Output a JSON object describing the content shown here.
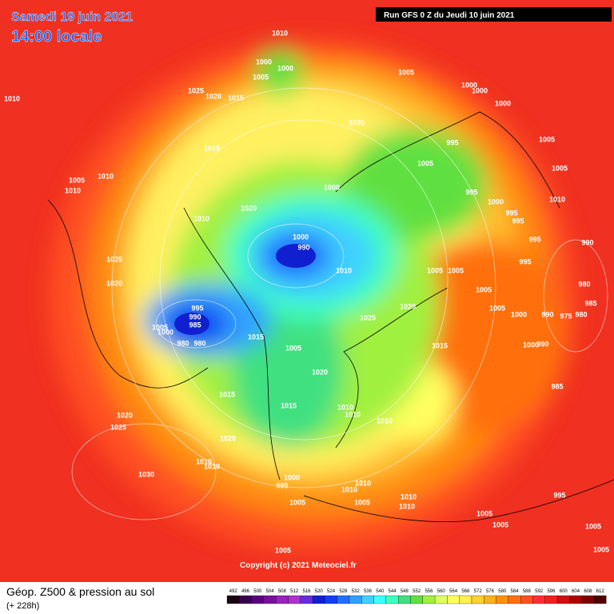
{
  "header": {
    "date": "Samedi 19 juin 2021",
    "time": "14:00 locale",
    "run": "Run GFS 0 Z du Jeudi 10 juin 2021"
  },
  "copyright": "Copyright (c) 2021 Meteociel.fr",
  "footer": {
    "title": "Géop. Z500 & pression au sol",
    "lead": "(+ 228h)"
  },
  "legend": {
    "levels": [
      492,
      496,
      500,
      504,
      508,
      512,
      516,
      520,
      524,
      528,
      532,
      536,
      540,
      544,
      548,
      552,
      556,
      560,
      564,
      568,
      572,
      576,
      580,
      584,
      588,
      592,
      596,
      600,
      604,
      608,
      612
    ],
    "colors": [
      "#1a0010",
      "#3a0050",
      "#5a0080",
      "#7a10a0",
      "#9a20c0",
      "#b030d0",
      "#6a2ae0",
      "#1020d0",
      "#1040f0",
      "#2070ff",
      "#30a0ff",
      "#40d0ff",
      "#40ffff",
      "#40ffc0",
      "#40e080",
      "#60e040",
      "#a0f040",
      "#e0ff60",
      "#ffff60",
      "#fff050",
      "#ffd030",
      "#ffb020",
      "#ff9010",
      "#ff7010",
      "#ff5020",
      "#ff3030",
      "#f02020",
      "#d01010",
      "#b00000",
      "#800000",
      "#500000"
    ]
  },
  "isobar_labels": [
    "1010",
    "1000",
    "1000",
    "1005",
    "1005",
    "1000",
    "1000",
    "1000",
    "1025",
    "1020",
    "1015",
    "1010",
    "1020",
    "1015",
    "995",
    "1005",
    "1005",
    "1005",
    "1005",
    "1010",
    "1010",
    "1000",
    "995",
    "1000",
    "1010",
    "1020",
    "1010",
    "995",
    "995",
    "1000",
    "990",
    "995",
    "990",
    "1025",
    "1010",
    "1005",
    "1005",
    "995",
    "1020",
    "980",
    "1005",
    "985",
    "995",
    "990",
    "985",
    "1020",
    "1000",
    "990",
    "975",
    "980",
    "1005",
    "1025",
    "1005",
    "1000",
    "980",
    "980",
    "1015",
    "1005",
    "1015",
    "1000",
    "990",
    "1020",
    "1015",
    "985",
    "1015",
    "1010",
    "1010",
    "1010",
    "1020",
    "1025",
    "1020",
    "1010",
    "1010",
    "1030",
    "995",
    "1000",
    "1010",
    "1010",
    "1010",
    "1010",
    "995",
    "1005",
    "1005",
    "1005",
    "1005",
    "1005",
    "1005",
    "1005"
  ]
}
